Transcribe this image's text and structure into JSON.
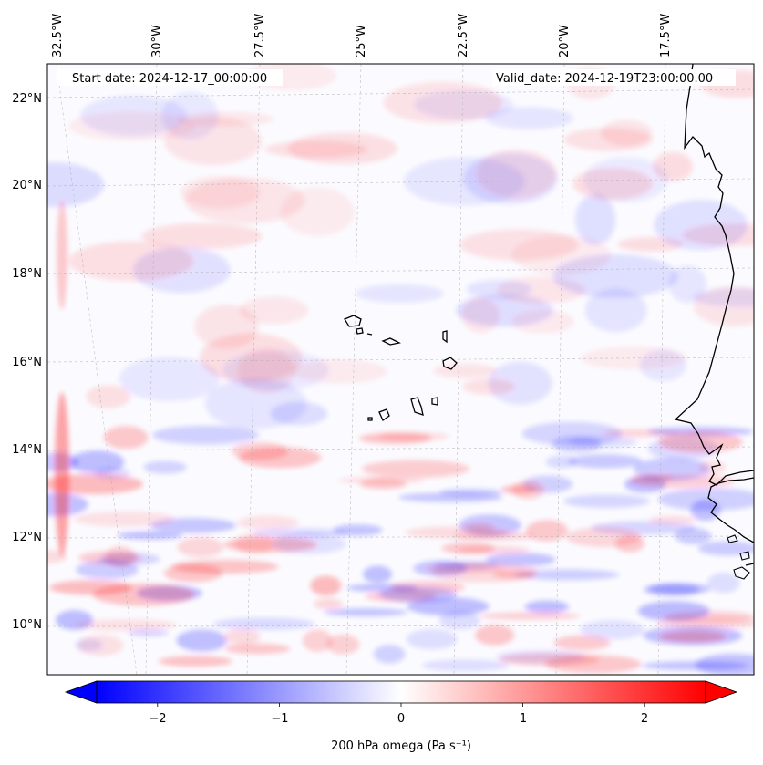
{
  "map": {
    "start_label": "Start date: 2024-12-17_00:00:00",
    "valid_label": "Valid_date: 2024-12-19T23:00:00.00",
    "lon_labels": [
      "32.5°W",
      "30°W",
      "27.5°W",
      "25°W",
      "22.5°W",
      "20°W",
      "17.5°W"
    ],
    "lat_labels": [
      "22°N",
      "20°N",
      "18°N",
      "16°N",
      "14°N",
      "12°N",
      "10°N"
    ],
    "extent": {
      "lon_min": -32.8,
      "lon_max": -15.5,
      "lat_min": 8.9,
      "lat_max": 22.8
    },
    "variable": "200 hPa omega",
    "units": "Pa s⁻¹",
    "features": [
      "Cape Verde islands",
      "West African coastline"
    ]
  },
  "colorbar": {
    "label": "200 hPa omega (Pa s⁻¹)",
    "ticks": [
      "−2",
      "−1",
      "0",
      "1",
      "2"
    ],
    "tick_values": [
      -2,
      -1,
      0,
      1,
      2
    ],
    "range": [
      -2.5,
      2.5
    ],
    "colormap": "bwr",
    "color_low": "#0000ff",
    "color_mid": "#ffffff",
    "color_high": "#ff0000"
  }
}
